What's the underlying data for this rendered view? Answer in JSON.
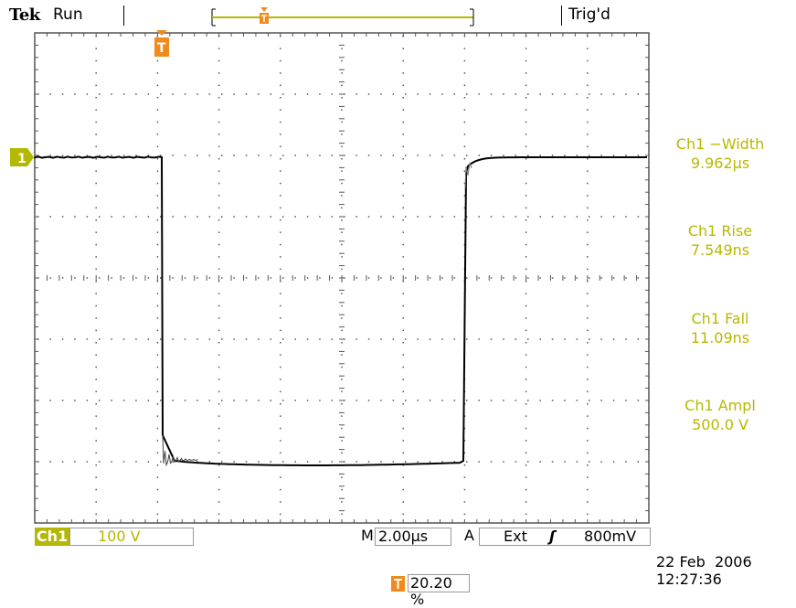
{
  "header": {
    "brand": "Tek",
    "acq_state": "Run",
    "trigger_state": "Trig'd"
  },
  "channel_marker": "1",
  "trigger_marker": "T",
  "measurements": [
    {
      "label": "Ch1 −Width",
      "value": "9.962µs"
    },
    {
      "label": "Ch1 Rise",
      "value": "7.549ns"
    },
    {
      "label": "Ch1 Fall",
      "value": "11.09ns"
    },
    {
      "label": "Ch1 Ampl",
      "value": "500.0 V"
    }
  ],
  "status": {
    "channel": "Ch1",
    "volts_per_div": "100 V",
    "timebase_label": "M",
    "timebase": "2.00µs",
    "trigger_mode": "A",
    "trigger_source": "Ext",
    "trigger_slope": "ʃ",
    "trigger_level": "800mV",
    "trigger_position": "20.20 %",
    "date": "22 Feb  2006",
    "time": "12:27:36"
  },
  "colors": {
    "accent": "#b5b800",
    "trigger": "#f08a1c",
    "grid": "#555555",
    "trace": "#000000"
  }
}
